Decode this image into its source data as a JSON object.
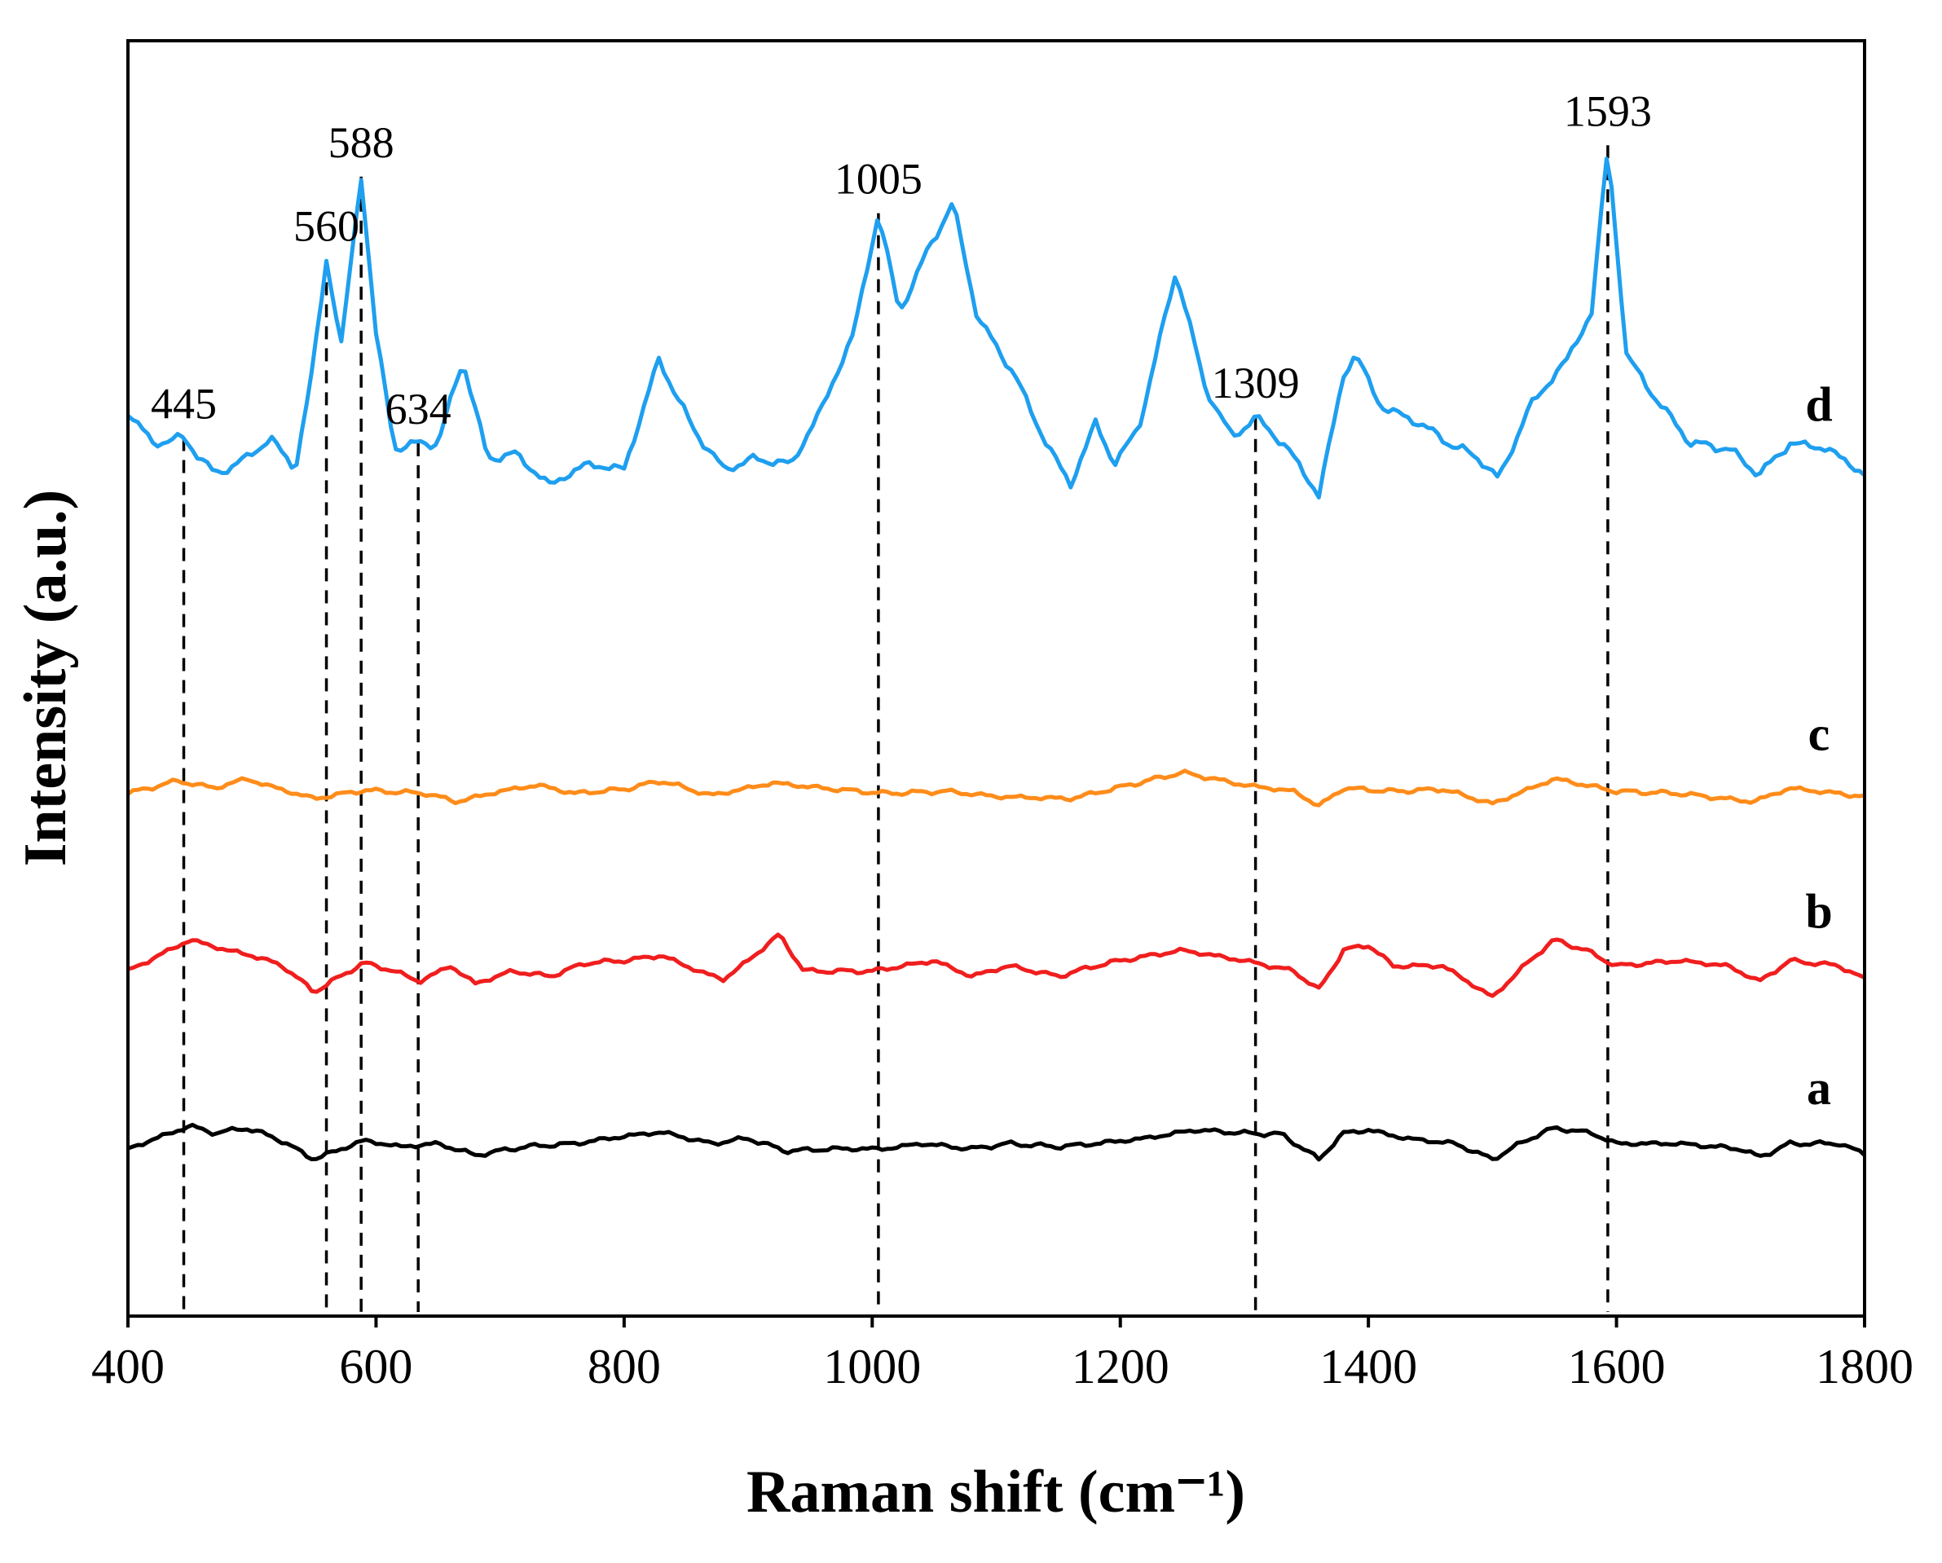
{
  "chart_data": {
    "type": "line",
    "title": "",
    "xlabel": "Raman shift (cm⁻¹)",
    "ylabel": "Intensity (a.u.)",
    "xlim": [
      400,
      1800
    ],
    "x_ticks": [
      400,
      600,
      800,
      1000,
      1200,
      1400,
      1600,
      1800
    ],
    "y_ticks_shown": false,
    "grid": false,
    "legend": "inline labels at right",
    "series": [
      {
        "name": "d",
        "color": "#1E9FEF",
        "offset": 6.6,
        "points": [
          [
            400,
            0.85
          ],
          [
            420,
            0.55
          ],
          [
            445,
            0.6
          ],
          [
            470,
            0.25
          ],
          [
            495,
            0.4
          ],
          [
            515,
            0.6
          ],
          [
            535,
            0.3
          ],
          [
            548,
            1.2
          ],
          [
            560,
            2.3
          ],
          [
            572,
            1.5
          ],
          [
            588,
            3.1
          ],
          [
            600,
            1.6
          ],
          [
            615,
            0.5
          ],
          [
            634,
            0.55
          ],
          [
            650,
            0.55
          ],
          [
            670,
            1.35
          ],
          [
            690,
            0.4
          ],
          [
            712,
            0.45
          ],
          [
            740,
            0.15
          ],
          [
            770,
            0.35
          ],
          [
            800,
            0.3
          ],
          [
            828,
            1.35
          ],
          [
            855,
            0.7
          ],
          [
            880,
            0.3
          ],
          [
            905,
            0.4
          ],
          [
            935,
            0.35
          ],
          [
            960,
            0.9
          ],
          [
            985,
            1.6
          ],
          [
            1005,
            2.75
          ],
          [
            1022,
            1.8
          ],
          [
            1045,
            2.4
          ],
          [
            1065,
            2.85
          ],
          [
            1085,
            1.75
          ],
          [
            1115,
            1.2
          ],
          [
            1138,
            0.6
          ],
          [
            1160,
            0.15
          ],
          [
            1180,
            0.75
          ],
          [
            1195,
            0.35
          ],
          [
            1215,
            0.7
          ],
          [
            1245,
            2.2
          ],
          [
            1268,
            1.1
          ],
          [
            1290,
            0.6
          ],
          [
            1309,
            0.8
          ],
          [
            1335,
            0.5
          ],
          [
            1360,
            0.05
          ],
          [
            1380,
            1.2
          ],
          [
            1390,
            1.4
          ],
          [
            1410,
            0.9
          ],
          [
            1440,
            0.75
          ],
          [
            1465,
            0.55
          ],
          [
            1490,
            0.4
          ],
          [
            1505,
            0.2
          ],
          [
            1530,
            0.9
          ],
          [
            1560,
            1.35
          ],
          [
            1580,
            1.8
          ],
          [
            1593,
            3.4
          ],
          [
            1608,
            1.4
          ],
          [
            1630,
            1.0
          ],
          [
            1660,
            0.55
          ],
          [
            1690,
            0.5
          ],
          [
            1715,
            0.25
          ],
          [
            1740,
            0.55
          ],
          [
            1770,
            0.5
          ],
          [
            1800,
            0.25
          ]
        ]
      },
      {
        "name": "c",
        "color": "#FF8C1A",
        "offset": 3.8,
        "points": [
          [
            400,
            0.0
          ],
          [
            440,
            0.12
          ],
          [
            470,
            0.05
          ],
          [
            495,
            0.14
          ],
          [
            520,
            0.05
          ],
          [
            550,
            -0.05
          ],
          [
            590,
            0.03
          ],
          [
            640,
            0.0
          ],
          [
            665,
            -0.08
          ],
          [
            700,
            0.02
          ],
          [
            730,
            0.08
          ],
          [
            760,
            0.0
          ],
          [
            800,
            0.04
          ],
          [
            830,
            0.12
          ],
          [
            870,
            -0.02
          ],
          [
            920,
            0.1
          ],
          [
            960,
            0.05
          ],
          [
            1010,
            0.0
          ],
          [
            1060,
            0.02
          ],
          [
            1100,
            -0.03
          ],
          [
            1160,
            -0.05
          ],
          [
            1200,
            0.06
          ],
          [
            1250,
            0.2
          ],
          [
            1300,
            0.08
          ],
          [
            1340,
            0.02
          ],
          [
            1360,
            -0.12
          ],
          [
            1380,
            0.05
          ],
          [
            1420,
            0.02
          ],
          [
            1460,
            0.04
          ],
          [
            1500,
            -0.1
          ],
          [
            1550,
            0.14
          ],
          [
            1600,
            0.02
          ],
          [
            1650,
            0.0
          ],
          [
            1710,
            -0.08
          ],
          [
            1740,
            0.05
          ],
          [
            1800,
            -0.03
          ]
        ]
      },
      {
        "name": "b",
        "color": "#F01E1E",
        "offset": 2.1,
        "points": [
          [
            400,
            0.0
          ],
          [
            450,
            0.3
          ],
          [
            480,
            0.2
          ],
          [
            500,
            0.15
          ],
          [
            525,
            0.05
          ],
          [
            550,
            -0.2
          ],
          [
            590,
            0.08
          ],
          [
            615,
            0.0
          ],
          [
            635,
            -0.1
          ],
          [
            660,
            0.05
          ],
          [
            680,
            -0.12
          ],
          [
            710,
            0.0
          ],
          [
            740,
            -0.05
          ],
          [
            770,
            0.08
          ],
          [
            800,
            0.1
          ],
          [
            830,
            0.15
          ],
          [
            860,
            0.0
          ],
          [
            880,
            -0.08
          ],
          [
            900,
            0.1
          ],
          [
            925,
            0.35
          ],
          [
            945,
            0.0
          ],
          [
            1000,
            0.0
          ],
          [
            1050,
            0.1
          ],
          [
            1080,
            -0.05
          ],
          [
            1110,
            0.05
          ],
          [
            1150,
            -0.05
          ],
          [
            1180,
            0.05
          ],
          [
            1200,
            0.1
          ],
          [
            1250,
            0.2
          ],
          [
            1300,
            0.1
          ],
          [
            1340,
            0.0
          ],
          [
            1360,
            -0.18
          ],
          [
            1380,
            0.2
          ],
          [
            1400,
            0.25
          ],
          [
            1420,
            0.05
          ],
          [
            1460,
            0.05
          ],
          [
            1500,
            -0.25
          ],
          [
            1530,
            0.1
          ],
          [
            1550,
            0.3
          ],
          [
            1575,
            0.2
          ],
          [
            1600,
            0.05
          ],
          [
            1650,
            0.1
          ],
          [
            1690,
            0.05
          ],
          [
            1715,
            -0.1
          ],
          [
            1740,
            0.1
          ],
          [
            1780,
            0.05
          ],
          [
            1800,
            -0.08
          ]
        ]
      },
      {
        "name": "a",
        "color": "#000000",
        "offset": 0.4,
        "points": [
          [
            400,
            0.0
          ],
          [
            450,
            0.22
          ],
          [
            470,
            0.15
          ],
          [
            495,
            0.2
          ],
          [
            520,
            0.1
          ],
          [
            550,
            -0.1
          ],
          [
            590,
            0.08
          ],
          [
            620,
            0.02
          ],
          [
            650,
            0.05
          ],
          [
            680,
            -0.06
          ],
          [
            720,
            0.02
          ],
          [
            760,
            0.05
          ],
          [
            800,
            0.12
          ],
          [
            830,
            0.16
          ],
          [
            870,
            0.05
          ],
          [
            900,
            0.1
          ],
          [
            930,
            -0.02
          ],
          [
            970,
            0.0
          ],
          [
            1010,
            0.0
          ],
          [
            1040,
            0.05
          ],
          [
            1080,
            0.0
          ],
          [
            1110,
            0.05
          ],
          [
            1150,
            0.02
          ],
          [
            1180,
            0.05
          ],
          [
            1220,
            0.1
          ],
          [
            1260,
            0.18
          ],
          [
            1300,
            0.15
          ],
          [
            1330,
            0.14
          ],
          [
            1360,
            -0.1
          ],
          [
            1380,
            0.15
          ],
          [
            1400,
            0.18
          ],
          [
            1430,
            0.1
          ],
          [
            1470,
            0.05
          ],
          [
            1500,
            -0.1
          ],
          [
            1530,
            0.1
          ],
          [
            1550,
            0.2
          ],
          [
            1580,
            0.15
          ],
          [
            1600,
            0.05
          ],
          [
            1650,
            0.05
          ],
          [
            1700,
            0.0
          ],
          [
            1715,
            -0.08
          ],
          [
            1740,
            0.05
          ],
          [
            1780,
            0.05
          ],
          [
            1800,
            -0.05
          ]
        ]
      }
    ],
    "peak_markers": [
      {
        "x": 445,
        "label": "445"
      },
      {
        "x": 560,
        "label": "560"
      },
      {
        "x": 588,
        "label": "588"
      },
      {
        "x": 634,
        "label": "634"
      },
      {
        "x": 1005,
        "label": "1005"
      },
      {
        "x": 1309,
        "label": "1309"
      },
      {
        "x": 1593,
        "label": "1593"
      }
    ]
  }
}
